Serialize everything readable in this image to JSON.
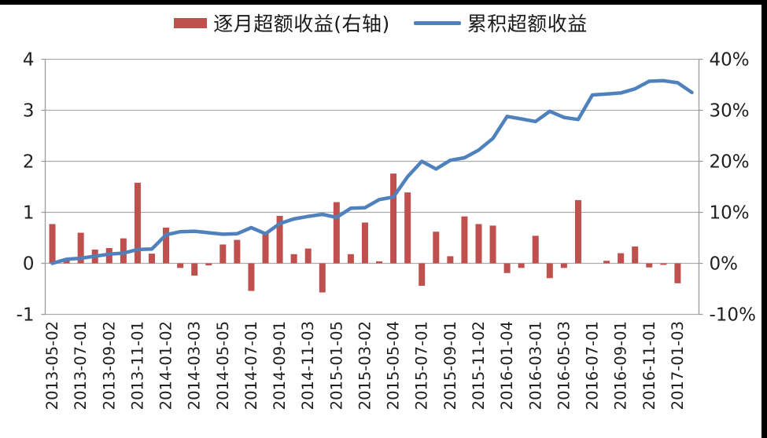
{
  "legend": {
    "bar_label": "逐月超额收益(右轴)",
    "line_label": "累积超额收益"
  },
  "chart_data": {
    "type": "bar+line combo",
    "title": "",
    "xlabel": "",
    "ylabel": "",
    "grid": true,
    "legend_position": "top",
    "categories": [
      "2013-05",
      "2013-06",
      "2013-07",
      "2013-08",
      "2013-09",
      "2013-10",
      "2013-11",
      "2013-12",
      "2014-01",
      "2014-02",
      "2014-03",
      "2014-04",
      "2014-05",
      "2014-06",
      "2014-07",
      "2014-08",
      "2014-09",
      "2014-10",
      "2014-11",
      "2014-12",
      "2015-01",
      "2015-02",
      "2015-03",
      "2015-04",
      "2015-05",
      "2015-06",
      "2015-07",
      "2015-08",
      "2015-09",
      "2015-10",
      "2015-11",
      "2015-12",
      "2016-01",
      "2016-02",
      "2016-03",
      "2016-04",
      "2016-05",
      "2016-06",
      "2016-07",
      "2016-08",
      "2016-09",
      "2016-10",
      "2016-11",
      "2016-12",
      "2017-01",
      "2017-02"
    ],
    "x_tick_labels": [
      "2013-05-02",
      "2013-07-01",
      "2013-09-02",
      "2013-11-01",
      "2014-01-02",
      "2014-03-03",
      "2014-05-05",
      "2014-07-01",
      "2014-09-01",
      "2014-11-03",
      "2015-01-05",
      "2015-03-02",
      "2015-05-04",
      "2015-07-01",
      "2015-09-01",
      "2015-11-02",
      "2016-01-04",
      "2016-03-01",
      "2016-05-03",
      "2016-07-01",
      "2016-09-01",
      "2016-11-01",
      "2017-01-03"
    ],
    "series": [
      {
        "name": "逐月超额收益(右轴)",
        "type": "bar",
        "axis": "right",
        "unit": "%",
        "color": "#C0504D",
        "values": [
          7.7,
          1.0,
          6.0,
          2.7,
          3.0,
          4.9,
          15.8,
          1.9,
          7.0,
          -0.9,
          -2.4,
          -0.4,
          3.7,
          4.6,
          -5.4,
          6.0,
          9.3,
          1.8,
          2.9,
          -5.7,
          12.0,
          1.8,
          8.0,
          0.4,
          17.6,
          13.9,
          -4.4,
          6.2,
          1.4,
          9.2,
          7.7,
          7.4,
          -1.9,
          -0.9,
          5.4,
          -2.9,
          -0.9,
          12.4,
          0.0,
          0.5,
          2.0,
          3.3,
          -0.8,
          -0.3,
          -3.9,
          0.0
        ]
      },
      {
        "name": "累积超额收益",
        "type": "line",
        "axis": "left",
        "color": "#4F81BD",
        "values": [
          0.0,
          0.08,
          0.1,
          0.14,
          0.18,
          0.2,
          0.27,
          0.28,
          0.56,
          0.62,
          0.63,
          0.6,
          0.57,
          0.58,
          0.7,
          0.58,
          0.78,
          0.87,
          0.92,
          0.96,
          0.9,
          1.08,
          1.09,
          1.25,
          1.3,
          1.7,
          2.0,
          1.85,
          2.02,
          2.07,
          2.22,
          2.45,
          2.88,
          2.83,
          2.78,
          2.98,
          2.86,
          2.82,
          3.3,
          3.32,
          3.34,
          3.42,
          3.57,
          3.58,
          3.54,
          3.35
        ]
      }
    ],
    "left_axis": {
      "min": -1,
      "max": 4,
      "tick_labels": [
        "4",
        "3",
        "2",
        "1",
        "0",
        "-1"
      ],
      "tick_values": [
        4,
        3,
        2,
        1,
        0,
        -1
      ]
    },
    "right_axis": {
      "min": -10,
      "max": 40,
      "tick_labels": [
        "40%",
        "30%",
        "20%",
        "10%",
        "0%",
        "-10%"
      ],
      "tick_values": [
        40,
        30,
        20,
        10,
        0,
        -10
      ]
    },
    "colors": {
      "grid": "#ABABAB",
      "axis": "#9b9b9b",
      "bar": "#C0504D",
      "line": "#4F81BD"
    }
  }
}
